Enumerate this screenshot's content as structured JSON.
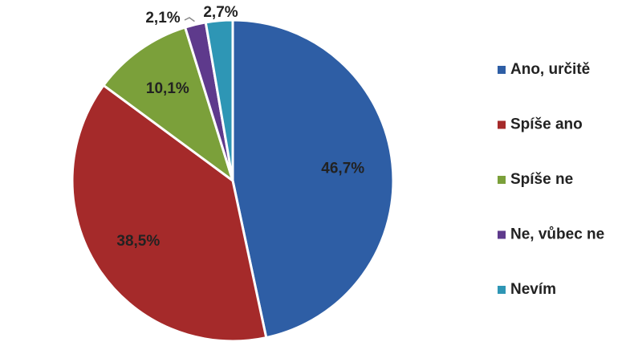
{
  "chart_data": {
    "type": "pie",
    "title": "",
    "legend_position": "right",
    "slices": [
      {
        "label": "Ano, určitě",
        "value": 46.7,
        "display": "46,7%",
        "color": "#2E5EA5"
      },
      {
        "label": "Spíše ano",
        "value": 38.5,
        "display": "38,5%",
        "color": "#A52A2A"
      },
      {
        "label": "Spíše ne",
        "value": 10.1,
        "display": "10,1%",
        "color": "#7BA03A"
      },
      {
        "label": "Ne, vůbec ne",
        "value": 2.1,
        "display": "2,1%",
        "color": "#5E3A8C"
      },
      {
        "label": "Nevím",
        "value": 2.7,
        "display": "2,7%",
        "color": "#2E96B5"
      }
    ]
  }
}
